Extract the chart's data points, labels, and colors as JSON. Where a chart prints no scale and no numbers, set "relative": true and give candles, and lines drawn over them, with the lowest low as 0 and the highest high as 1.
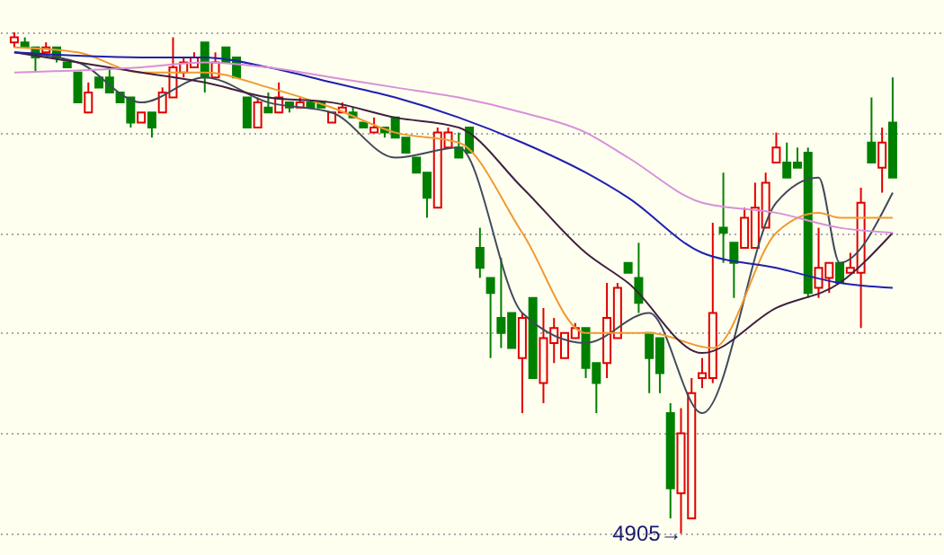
{
  "chart_data": {
    "type": "candlestick",
    "relative": true,
    "categories": [
      null,
      null,
      null,
      null,
      null,
      null,
      null,
      null,
      null,
      null,
      null,
      null,
      null,
      null,
      null,
      null,
      null,
      null,
      null,
      null,
      null,
      null,
      null,
      null,
      null,
      null,
      null,
      null,
      null,
      null,
      null,
      null,
      null,
      null,
      null,
      null,
      null,
      null,
      null,
      null,
      null,
      null,
      null,
      null,
      null,
      null,
      null,
      null,
      null,
      null,
      null,
      null,
      null,
      null,
      null,
      null,
      null,
      null,
      null,
      null,
      null,
      null,
      null,
      null,
      null,
      null,
      null,
      null,
      null,
      null,
      null,
      null,
      null,
      null,
      null,
      null,
      null,
      null,
      null,
      null,
      null,
      null,
      null,
      null
    ],
    "colors": [
      "#e00000",
      "#008000",
      "#008000",
      "#e00000",
      "#008000",
      "#008000",
      "#008000",
      "#e00000",
      "#008000",
      "#008000",
      "#008000",
      "#008000",
      "#e00000",
      "#008000",
      "#e00000",
      "#e00000",
      "#e00000",
      "#e00000",
      "#008000",
      "#e00000",
      "#008000",
      "#008000",
      "#008000",
      "#e00000",
      "#008000",
      "#e00000",
      "#008000",
      "#e00000",
      "#008000",
      "#008000",
      "#e00000",
      "#e00000",
      "#008000",
      "#008000",
      "#e00000",
      "#008000",
      "#008000",
      "#008000",
      "#008000",
      "#008000",
      "#e00000",
      "#e00000",
      "#008000",
      "#008000",
      "#008000",
      "#008000",
      "#008000",
      "#008000",
      "#e00000",
      "#008000",
      "#e00000",
      "#e00000",
      "#e00000",
      "#e00000",
      "#008000",
      "#008000",
      "#e00000",
      "#e00000",
      "#008000",
      "#008000",
      "#008000",
      "#008000",
      "#008000",
      "#e00000",
      "#e00000",
      "#e00000",
      "#e00000",
      "#008000",
      "#008000",
      "#e00000",
      "#e00000",
      "#e00000",
      "#e00000",
      "#008000",
      "#008000",
      "#008000",
      "#e00000",
      "#e00000",
      "#008000",
      "#e00000",
      "#e00000",
      "#008000",
      "#e00000",
      "#008000"
    ],
    "grid": true,
    "ohlc": [
      [
        0.98,
        1.0,
        0.97,
        0.99
      ],
      [
        0.98,
        0.99,
        0.97,
        0.97
      ],
      [
        0.97,
        0.97,
        0.92,
        0.95
      ],
      [
        0.96,
        0.98,
        0.96,
        0.97
      ],
      [
        0.97,
        0.97,
        0.94,
        0.95
      ],
      [
        0.94,
        0.94,
        0.93,
        0.93
      ],
      [
        0.92,
        0.92,
        0.86,
        0.86
      ],
      [
        0.84,
        0.9,
        0.84,
        0.88
      ],
      [
        0.91,
        0.91,
        0.89,
        0.89
      ],
      [
        0.91,
        0.93,
        0.88,
        0.88
      ],
      [
        0.88,
        0.88,
        0.86,
        0.86
      ],
      [
        0.87,
        0.87,
        0.81,
        0.82
      ],
      [
        0.82,
        0.84,
        0.82,
        0.84
      ],
      [
        0.84,
        0.84,
        0.79,
        0.81
      ],
      [
        0.84,
        0.89,
        0.84,
        0.88
      ],
      [
        0.87,
        0.99,
        0.87,
        0.93
      ],
      [
        0.92,
        0.95,
        0.91,
        0.94
      ],
      [
        0.93,
        0.96,
        0.93,
        0.95
      ],
      [
        0.98,
        0.98,
        0.88,
        0.91
      ],
      [
        0.91,
        0.96,
        0.91,
        0.94
      ],
      [
        0.97,
        0.97,
        0.94,
        0.94
      ],
      [
        0.95,
        0.95,
        0.91,
        0.91
      ],
      [
        0.87,
        0.87,
        0.81,
        0.81
      ],
      [
        0.81,
        0.87,
        0.81,
        0.86
      ],
      [
        0.85,
        0.88,
        0.84,
        0.84
      ],
      [
        0.84,
        0.9,
        0.84,
        0.87
      ],
      [
        0.86,
        0.86,
        0.84,
        0.85
      ],
      [
        0.85,
        0.87,
        0.85,
        0.86
      ],
      [
        0.86,
        0.86,
        0.85,
        0.85
      ],
      [
        0.86,
        0.86,
        0.85,
        0.85
      ],
      [
        0.82,
        0.84,
        0.82,
        0.84
      ],
      [
        0.84,
        0.86,
        0.84,
        0.85
      ],
      [
        0.84,
        0.85,
        0.83,
        0.83
      ],
      [
        0.82,
        0.82,
        0.81,
        0.81
      ],
      [
        0.8,
        0.83,
        0.8,
        0.81
      ],
      [
        0.81,
        0.81,
        0.79,
        0.8
      ],
      [
        0.83,
        0.83,
        0.79,
        0.79
      ],
      [
        0.79,
        0.79,
        0.76,
        0.76
      ],
      [
        0.75,
        0.75,
        0.72,
        0.72
      ],
      [
        0.72,
        0.72,
        0.63,
        0.67
      ],
      [
        0.65,
        0.81,
        0.65,
        0.8
      ],
      [
        0.77,
        0.81,
        0.77,
        0.8
      ],
      [
        0.77,
        0.8,
        0.75,
        0.75
      ],
      [
        0.81,
        0.81,
        0.76,
        0.76
      ],
      [
        0.57,
        0.61,
        0.51,
        0.53
      ],
      [
        0.51,
        0.51,
        0.35,
        0.48
      ],
      [
        0.43,
        0.55,
        0.37,
        0.4
      ],
      [
        0.44,
        0.44,
        0.37,
        0.37
      ],
      [
        0.35,
        0.44,
        0.24,
        0.43
      ],
      [
        0.47,
        0.47,
        0.31,
        0.31
      ],
      [
        0.3,
        0.45,
        0.26,
        0.39
      ],
      [
        0.38,
        0.43,
        0.34,
        0.41
      ],
      [
        0.35,
        0.4,
        0.35,
        0.4
      ],
      [
        0.39,
        0.42,
        0.39,
        0.41
      ],
      [
        0.41,
        0.41,
        0.31,
        0.33
      ],
      [
        0.34,
        0.34,
        0.24,
        0.3
      ],
      [
        0.34,
        0.5,
        0.31,
        0.43
      ],
      [
        0.39,
        0.5,
        0.39,
        0.49
      ],
      [
        0.54,
        0.54,
        0.52,
        0.52
      ],
      [
        0.51,
        0.58,
        0.44,
        0.46
      ],
      [
        0.4,
        0.4,
        0.28,
        0.35
      ],
      [
        0.39,
        0.39,
        0.28,
        0.32
      ],
      [
        0.24,
        0.26,
        0.03,
        0.09
      ],
      [
        0.08,
        0.25,
        0.0,
        0.2
      ],
      [
        0.03,
        0.31,
        0.03,
        0.28
      ],
      [
        0.31,
        0.35,
        0.29,
        0.32
      ],
      [
        0.31,
        0.62,
        0.3,
        0.44
      ],
      [
        0.61,
        0.72,
        0.54,
        0.6
      ],
      [
        0.58,
        0.58,
        0.47,
        0.54
      ],
      [
        0.57,
        0.65,
        0.57,
        0.63
      ],
      [
        0.57,
        0.7,
        0.57,
        0.65
      ],
      [
        0.61,
        0.72,
        0.61,
        0.7
      ],
      [
        0.74,
        0.8,
        0.74,
        0.77
      ],
      [
        0.74,
        0.78,
        0.71,
        0.71
      ],
      [
        0.74,
        0.77,
        0.73,
        0.73
      ],
      [
        0.76,
        0.77,
        0.47,
        0.48
      ],
      [
        0.49,
        0.61,
        0.47,
        0.53
      ],
      [
        0.51,
        0.54,
        0.48,
        0.54
      ],
      [
        0.54,
        0.54,
        0.5,
        0.5
      ],
      [
        0.52,
        0.56,
        0.52,
        0.53
      ],
      [
        0.52,
        0.69,
        0.41,
        0.66
      ],
      [
        0.78,
        0.87,
        0.74,
        0.74
      ],
      [
        0.73,
        0.81,
        0.68,
        0.78
      ],
      [
        0.82,
        0.91,
        0.71,
        0.71
      ]
    ],
    "series": [
      {
        "type": "line",
        "color": "#404a5a",
        "values": [
          0.96,
          null,
          null,
          null,
          null,
          null,
          0.94,
          null,
          null,
          null,
          null,
          null,
          0.86,
          null,
          null,
          null,
          null,
          null,
          0.91,
          null,
          null,
          null,
          null,
          null,
          0.86,
          null,
          null,
          null,
          null,
          null,
          0.84,
          null,
          null,
          null,
          null,
          null,
          0.75,
          null,
          null,
          null,
          null,
          null,
          0.77,
          null,
          null,
          null,
          null,
          null,
          0.44,
          null,
          null,
          null,
          null,
          null,
          0.38,
          null,
          null,
          null,
          null,
          null,
          0.44,
          null,
          null,
          null,
          null,
          0.24,
          null,
          null,
          null,
          null,
          null,
          null,
          0.66,
          null,
          null,
          null,
          0.71,
          null,
          0.54,
          null,
          null,
          null,
          null,
          0.68
        ]
      },
      {
        "type": "line",
        "color": "#f09a30",
        "values": [
          0.97,
          null,
          null,
          null,
          null,
          null,
          0.96,
          null,
          null,
          null,
          null,
          null,
          0.92,
          null,
          null,
          null,
          null,
          null,
          0.92,
          null,
          null,
          null,
          null,
          null,
          0.89,
          null,
          null,
          null,
          null,
          null,
          0.85,
          null,
          null,
          null,
          null,
          null,
          0.8,
          null,
          null,
          null,
          null,
          null,
          0.78,
          null,
          null,
          null,
          null,
          null,
          0.6,
          null,
          null,
          null,
          null,
          null,
          0.4,
          null,
          null,
          null,
          null,
          null,
          0.4,
          null,
          null,
          null,
          null,
          null,
          0.37,
          null,
          null,
          null,
          null,
          null,
          0.6,
          null,
          null,
          null,
          0.64,
          null,
          0.63,
          null,
          null,
          null,
          null,
          0.63
        ]
      },
      {
        "type": "line",
        "color": "#402040",
        "values": [
          0.96,
          null,
          null,
          null,
          null,
          null,
          null,
          null,
          null,
          null,
          null,
          null,
          0.92,
          null,
          null,
          null,
          null,
          null,
          0.9,
          null,
          null,
          null,
          null,
          null,
          0.87,
          null,
          null,
          null,
          null,
          null,
          0.86,
          null,
          null,
          null,
          null,
          null,
          0.83,
          null,
          null,
          null,
          null,
          null,
          0.81,
          null,
          null,
          null,
          null,
          null,
          0.69,
          null,
          null,
          null,
          null,
          null,
          0.56,
          null,
          null,
          null,
          0.5,
          null,
          null,
          null,
          null,
          null,
          null,
          0.36,
          null,
          null,
          null,
          null,
          null,
          null,
          0.45,
          null,
          null,
          null,
          null,
          null,
          0.5,
          null,
          null,
          null,
          null,
          0.6
        ]
      },
      {
        "type": "line",
        "color": "#2020b0",
        "values": [
          0.96,
          null,
          null,
          null,
          null,
          null,
          null,
          null,
          null,
          null,
          null,
          null,
          0.95,
          null,
          null,
          null,
          null,
          null,
          0.95,
          null,
          null,
          null,
          null,
          null,
          0.93,
          null,
          null,
          null,
          null,
          null,
          0.9,
          null,
          null,
          null,
          null,
          null,
          0.87,
          null,
          null,
          null,
          null,
          null,
          0.83,
          null,
          null,
          null,
          null,
          null,
          0.78,
          null,
          null,
          null,
          null,
          null,
          0.72,
          null,
          null,
          null,
          0.67,
          null,
          null,
          null,
          null,
          null,
          null,
          0.56,
          null,
          null,
          null,
          null,
          null,
          null,
          0.53,
          null,
          null,
          null,
          null,
          null,
          0.5,
          null,
          null,
          null,
          null,
          0.49
        ]
      },
      {
        "type": "line",
        "color": "#d890d8",
        "values": [
          0.92,
          null,
          null,
          null,
          null,
          null,
          null,
          null,
          null,
          null,
          null,
          null,
          0.93,
          null,
          null,
          null,
          null,
          null,
          0.94,
          null,
          null,
          null,
          null,
          null,
          0.93,
          null,
          null,
          null,
          null,
          null,
          0.91,
          null,
          null,
          null,
          null,
          null,
          0.89,
          null,
          null,
          null,
          null,
          null,
          0.87,
          null,
          null,
          null,
          null,
          null,
          0.84,
          null,
          null,
          null,
          null,
          null,
          0.8,
          null,
          null,
          null,
          0.75,
          null,
          null,
          null,
          null,
          null,
          null,
          0.66,
          null,
          null,
          null,
          null,
          null,
          null,
          0.64,
          null,
          null,
          null,
          null,
          null,
          0.61,
          null,
          null,
          null,
          null,
          0.6
        ]
      }
    ],
    "annotations": [
      "4905→"
    ]
  }
}
